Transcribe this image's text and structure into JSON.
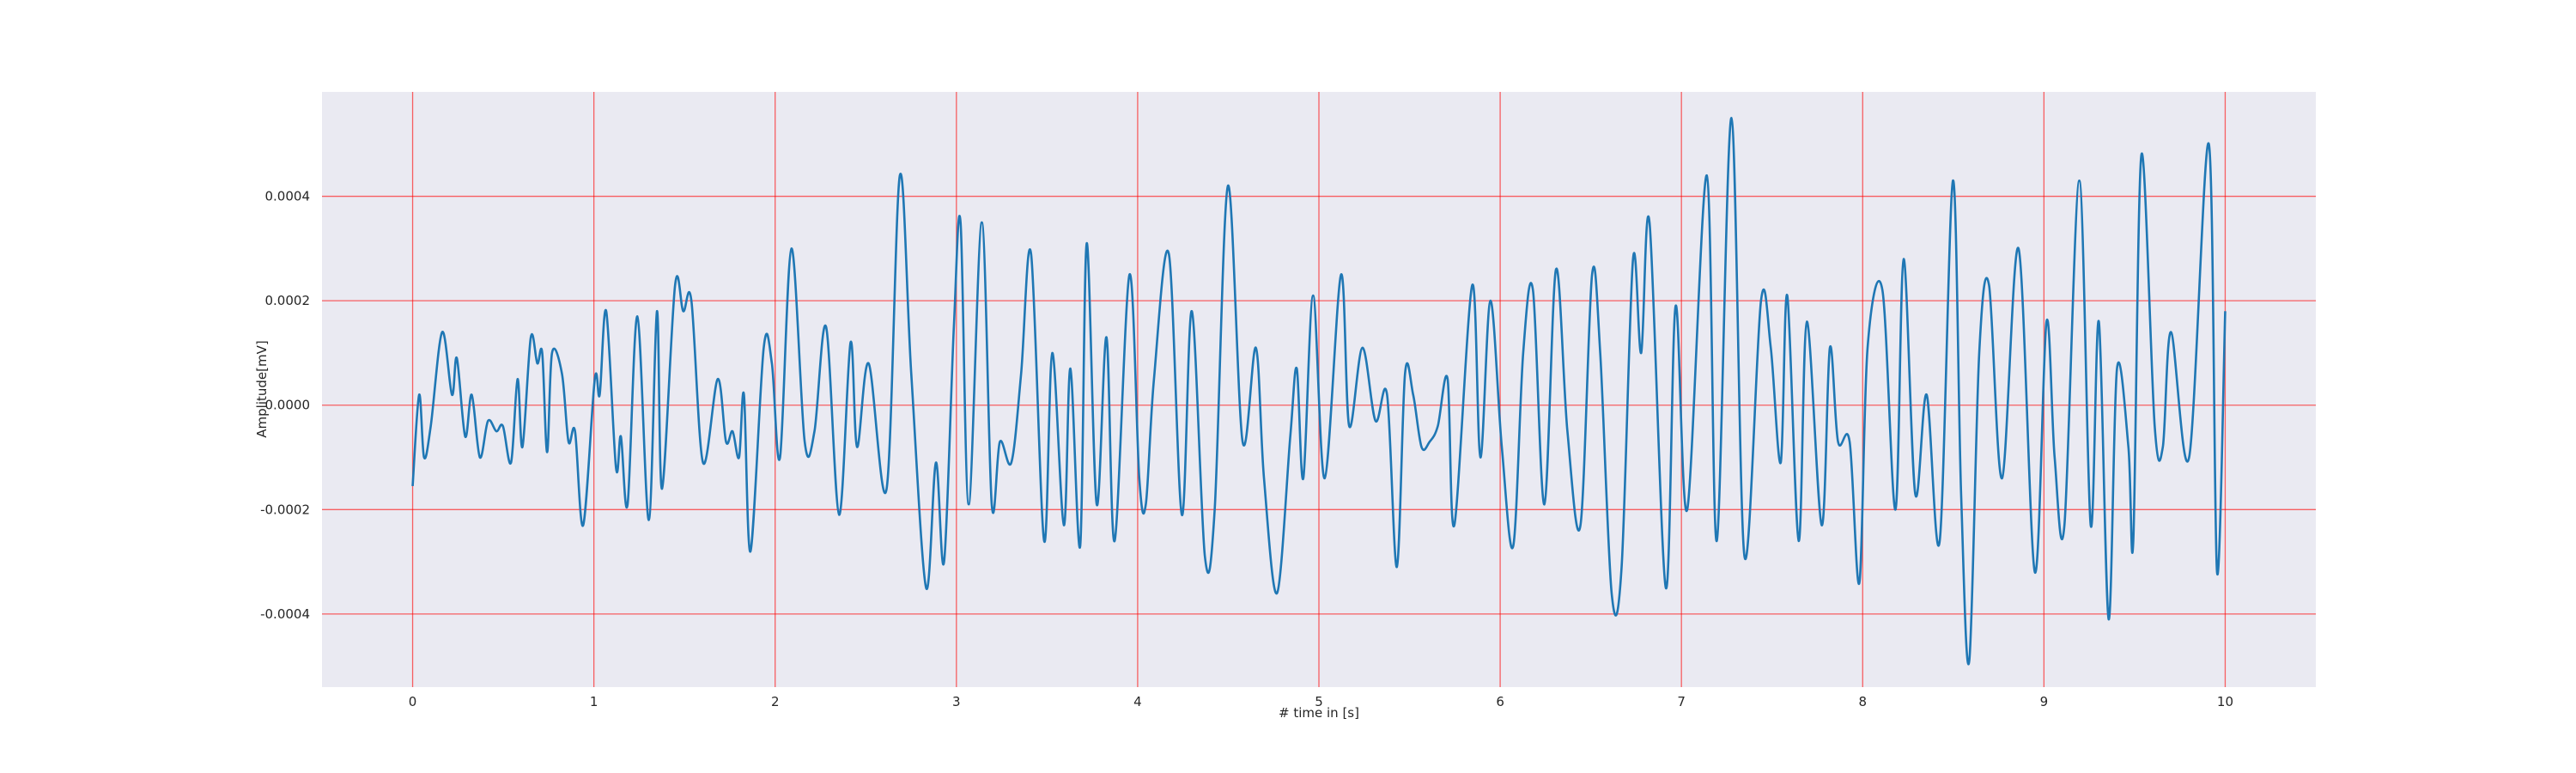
{
  "chart_data": {
    "type": "line",
    "xlabel": "# time in [s]",
    "ylabel": "Amplitude[mV]",
    "grid": true,
    "grid_color": "#ff0000",
    "background": "#eaeaf2",
    "xlim": [
      -0.5,
      10.5
    ],
    "ylim": [
      -0.00054,
      0.0006
    ],
    "xticks": [
      0,
      1,
      2,
      3,
      4,
      5,
      6,
      7,
      8,
      9,
      10
    ],
    "yticks": [
      {
        "value": -0.0004,
        "label": "-0.0004"
      },
      {
        "value": -0.0002,
        "label": "-0.0002"
      },
      {
        "value": 0,
        "label": "0.0000"
      },
      {
        "value": 0.0002,
        "label": "0.0002"
      },
      {
        "value": 0.0004,
        "label": "0.0004"
      }
    ],
    "series": [
      {
        "color": "#1f77b4",
        "x": [
          0,
          0.036,
          0.063,
          0.1,
          0.163,
          0.217,
          0.244,
          0.29,
          0.326,
          0.371,
          0.416,
          0.462,
          0.498,
          0.543,
          0.579,
          0.606,
          0.652,
          0.688,
          0.715,
          0.742,
          0.769,
          0.824,
          0.86,
          0.896,
          0.941,
          1.005,
          1.032,
          1.068,
          1.122,
          1.149,
          1.186,
          1.24,
          1.303,
          1.348,
          1.376,
          1.448,
          1.493,
          1.538,
          1.602,
          1.683,
          1.729,
          1.765,
          1.801,
          1.828,
          1.864,
          1.937,
          1.982,
          2.027,
          2.09,
          2.163,
          2.217,
          2.281,
          2.353,
          2.416,
          2.452,
          2.516,
          2.615,
          2.688,
          2.751,
          2.833,
          2.887,
          2.932,
          2.986,
          3.023,
          3.068,
          3.14,
          3.195,
          3.24,
          3.303,
          3.357,
          3.412,
          3.484,
          3.529,
          3.593,
          3.629,
          3.683,
          3.719,
          3.774,
          3.828,
          3.873,
          3.955,
          4.009,
          4.045,
          4.09,
          4.172,
          4.244,
          4.299,
          4.371,
          4.425,
          4.498,
          4.579,
          4.652,
          4.697,
          4.769,
          4.842,
          4.878,
          4.914,
          4.968,
          5.032,
          5.122,
          5.167,
          5.24,
          5.312,
          5.376,
          5.43,
          5.475,
          5.52,
          5.566,
          5.611,
          5.656,
          5.71,
          5.747,
          5.846,
          5.891,
          5.946,
          6.009,
          6.072,
          6.127,
          6.181,
          6.244,
          6.308,
          6.371,
          6.443,
          6.507,
          6.552,
          6.615,
          6.67,
          6.733,
          6.778,
          6.824,
          6.914,
          6.968,
          7.032,
          7.14,
          7.195,
          7.276,
          7.348,
          7.439,
          7.493,
          7.548,
          7.584,
          7.647,
          7.692,
          7.774,
          7.819,
          7.864,
          7.928,
          7.982,
          8.027,
          8.109,
          8.181,
          8.226,
          8.29,
          8.353,
          8.425,
          8.498,
          8.543,
          8.588,
          8.643,
          8.697,
          8.769,
          8.86,
          8.95,
          9.014,
          9.059,
          9.113,
          9.195,
          9.258,
          9.303,
          9.357,
          9.403,
          9.466,
          9.493,
          9.538,
          9.611,
          9.656,
          9.701,
          9.801,
          9.91,
          9.955,
          10
        ],
        "values": [
          -0.000155,
          2e-05,
          -0.0001,
          -4e-05,
          0.00014,
          2e-05,
          9e-05,
          -6e-05,
          2e-05,
          -0.0001,
          -3e-05,
          -5e-05,
          -4e-05,
          -0.00011,
          5e-05,
          -8e-05,
          0.00013,
          8e-05,
          0.0001,
          -9e-05,
          0.0001,
          6e-05,
          -7e-05,
          -5e-05,
          -0.00023,
          5e-05,
          2e-05,
          0.00018,
          -0.00012,
          -6e-05,
          -0.00019,
          0.00017,
          -0.00022,
          0.00018,
          -0.00016,
          0.00023,
          0.00018,
          0.0002,
          -0.00011,
          5e-05,
          -7e-05,
          -5e-05,
          -0.0001,
          2e-05,
          -0.00028,
          0.00011,
          8e-05,
          -0.0001,
          0.0003,
          -7e-05,
          -5e-05,
          0.00015,
          -0.00021,
          0.00012,
          -8e-05,
          8e-05,
          -0.00016,
          0.00044,
          6e-05,
          -0.00035,
          -0.00011,
          -0.0003,
          0.00015,
          0.00035,
          -0.00019,
          0.00035,
          -0.00019,
          -7e-05,
          -0.00011,
          6e-05,
          0.00029,
          -0.00026,
          0.0001,
          -0.00023,
          7e-05,
          -0.00027,
          0.00031,
          -0.00019,
          0.00013,
          -0.00026,
          0.00025,
          -0.00014,
          -0.00019,
          5e-05,
          0.00029,
          -0.00021,
          0.00018,
          -0.00029,
          -0.0002,
          0.00042,
          -7e-05,
          0.00011,
          -0.00014,
          -0.00036,
          -6e-05,
          7e-05,
          -0.00014,
          0.00021,
          -0.00014,
          0.00025,
          -4e-05,
          0.00011,
          -3e-05,
          2e-05,
          -0.00031,
          6e-05,
          2e-05,
          -8e-05,
          -7e-05,
          -4e-05,
          5e-05,
          -0.00023,
          0.00023,
          -0.0001,
          0.0002,
          -8e-05,
          -0.00027,
          0.0001,
          0.00022,
          -0.00019,
          0.00026,
          -5e-05,
          -0.00023,
          0.00025,
          0.0001,
          -0.00036,
          -0.00031,
          0.00028,
          0.0001,
          0.00035,
          -0.00035,
          0.00019,
          -0.0002,
          0.00044,
          -0.00026,
          0.00055,
          -0.00029,
          0.0002,
          0.00011,
          -0.00011,
          0.00021,
          -0.00026,
          0.00016,
          -0.00023,
          0.00011,
          -7e-05,
          -7e-05,
          -0.00034,
          0.00011,
          0.00022,
          -0.0002,
          0.00028,
          -0.00017,
          2e-05,
          -0.00026,
          0.00043,
          -0.00017,
          -0.00049,
          0.0001,
          0.00023,
          -0.00014,
          0.0003,
          -0.00032,
          0.00016,
          -0.0001,
          -0.00023,
          0.00043,
          -0.00023,
          0.00016,
          -0.00041,
          7e-05,
          -8e-05,
          -0.00026,
          0.00048,
          -4e-05,
          -8e-05,
          0.00014,
          -0.0001,
          0.0005,
          -0.00032,
          0.00018
        ]
      }
    ]
  }
}
